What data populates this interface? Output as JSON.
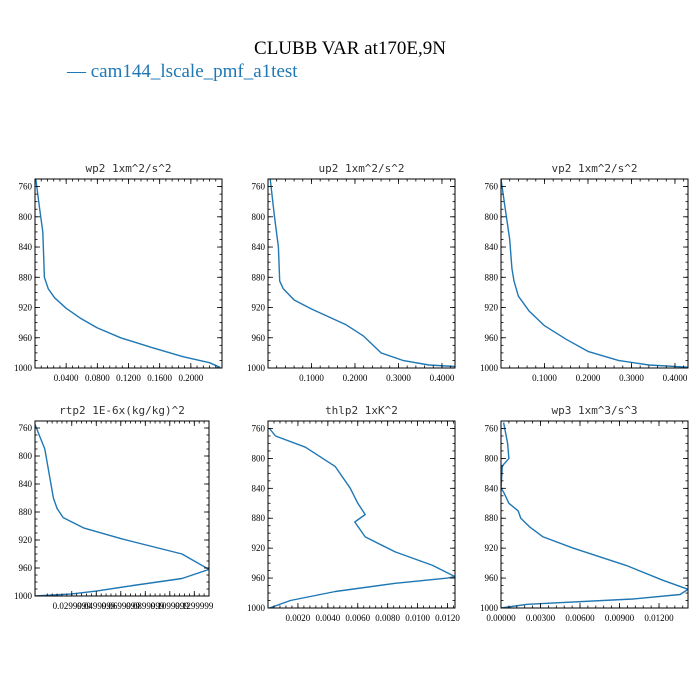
{
  "figure": {
    "title": "CLUBB VAR at170E,9N",
    "legend": [
      {
        "name": "cam144_lscale_pmf_a1test",
        "color": "#1f77b4",
        "label": "— cam144_lscale_pmf_a1test"
      }
    ]
  },
  "chart_data": [
    {
      "type": "line",
      "title": "wp2  1xm^2/s^2",
      "xlim": [
        0.0,
        0.24
      ],
      "ylim": [
        1000,
        750
      ],
      "xticks": [
        0.04,
        0.08,
        0.12,
        0.16,
        0.2
      ],
      "xtick_labels": [
        "0.0400",
        "0.0800",
        "0.1200",
        "0.1600",
        "0.2000"
      ],
      "yticks": [
        760,
        800,
        840,
        880,
        920,
        960,
        1000
      ],
      "ytick_labels": [
        "760",
        "800",
        "840",
        "880",
        "920",
        "960",
        "1000"
      ],
      "series": [
        {
          "color": "#1f77b4",
          "x": [
            0.001,
            0.006,
            0.01,
            0.012,
            0.017,
            0.025,
            0.04,
            0.058,
            0.08,
            0.11,
            0.15,
            0.19,
            0.224,
            0.237,
            0.232
          ],
          "y": [
            750,
            790,
            820,
            880,
            895,
            907,
            921,
            934,
            947,
            960,
            973,
            985,
            993,
            999,
            1000
          ]
        }
      ]
    },
    {
      "type": "line",
      "title": "up2  1xm^2/s^2",
      "xlim": [
        0.0,
        0.43
      ],
      "ylim": [
        1000,
        750
      ],
      "xticks": [
        0.1,
        0.2,
        0.3,
        0.4
      ],
      "xtick_labels": [
        "0.1000",
        "0.2000",
        "0.3000",
        "0.4000"
      ],
      "yticks": [
        760,
        800,
        840,
        880,
        920,
        960,
        1000
      ],
      "ytick_labels": [
        "760",
        "800",
        "840",
        "880",
        "920",
        "960",
        "1000"
      ],
      "series": [
        {
          "color": "#1f77b4",
          "x": [
            0.005,
            0.015,
            0.024,
            0.027,
            0.035,
            0.06,
            0.1,
            0.18,
            0.22,
            0.26,
            0.31,
            0.37,
            0.43
          ],
          "y": [
            750,
            800,
            840,
            885,
            895,
            910,
            922,
            943,
            958,
            980,
            990,
            996,
            998
          ]
        }
      ]
    },
    {
      "type": "line",
      "title": "vp2  1xm^2/s^2",
      "xlim": [
        0.0,
        0.43
      ],
      "ylim": [
        1000,
        750
      ],
      "xticks": [
        0.1,
        0.2,
        0.3,
        0.4
      ],
      "xtick_labels": [
        "0.1000",
        "0.2000",
        "0.3000",
        "0.4000"
      ],
      "yticks": [
        760,
        800,
        840,
        880,
        920,
        960,
        1000
      ],
      "ytick_labels": [
        "760",
        "800",
        "840",
        "880",
        "920",
        "960",
        "1000"
      ],
      "series": [
        {
          "color": "#1f77b4",
          "x": [
            0.0,
            0.01,
            0.02,
            0.025,
            0.03,
            0.04,
            0.065,
            0.1,
            0.15,
            0.2,
            0.27,
            0.34,
            0.43
          ],
          "y": [
            750,
            790,
            830,
            868,
            885,
            905,
            925,
            944,
            962,
            978,
            990,
            996,
            999
          ]
        }
      ]
    },
    {
      "type": "line",
      "title": "rtp2  1E-6x(kg/kg)^2",
      "xlim": [
        0.0,
        0.142
      ],
      "ylim": [
        1000,
        750
      ],
      "xticks": [
        0.03,
        0.05,
        0.07,
        0.09,
        0.11,
        0.13
      ],
      "xtick_labels": [
        "0.0299999",
        "0.0499999",
        "0.0699999",
        "0.0899999",
        "0.1099999",
        "0.1299999"
      ],
      "yticks": [
        760,
        800,
        840,
        880,
        920,
        960,
        1000
      ],
      "ytick_labels": [
        "760",
        "800",
        "840",
        "880",
        "920",
        "960",
        "1000"
      ],
      "series": [
        {
          "color": "#1f77b4",
          "x": [
            0.0,
            0.008,
            0.012,
            0.015,
            0.018,
            0.023,
            0.04,
            0.07,
            0.12,
            0.142,
            0.12,
            0.08,
            0.05,
            0.03,
            0.0
          ],
          "y": [
            755,
            790,
            830,
            860,
            875,
            888,
            903,
            918,
            940,
            962,
            975,
            985,
            993,
            997,
            1000
          ]
        }
      ]
    },
    {
      "type": "line",
      "title": "thlp2  1xK^2",
      "xlim": [
        0.0,
        0.0125
      ],
      "ylim": [
        1000,
        750
      ],
      "xticks": [
        0.002,
        0.004,
        0.006,
        0.008,
        0.01,
        0.012
      ],
      "xtick_labels": [
        "0.0020",
        "0.0040",
        "0.0060",
        "0.0080",
        "0.0100",
        "0.0120"
      ],
      "yticks": [
        760,
        800,
        840,
        880,
        920,
        960,
        1000
      ],
      "ytick_labels": [
        "760",
        "800",
        "840",
        "880",
        "920",
        "960",
        "1000"
      ],
      "series": [
        {
          "color": "#1f77b4",
          "x": [
            0.0001,
            0.0005,
            0.0025,
            0.0045,
            0.0055,
            0.006,
            0.0065,
            0.0058,
            0.0065,
            0.0085,
            0.011,
            0.0125,
            0.012,
            0.0085,
            0.0045,
            0.0015,
            0.0001
          ],
          "y": [
            760,
            770,
            785,
            811,
            840,
            860,
            875,
            885,
            905,
            925,
            943,
            958,
            960,
            967,
            978,
            990,
            1000
          ]
        }
      ]
    },
    {
      "type": "line",
      "title": "wp3  1xm^3/s^3",
      "xlim": [
        0.0,
        0.0142
      ],
      "ylim": [
        1000,
        750
      ],
      "xticks": [
        0.0,
        0.003,
        0.006,
        0.009,
        0.012
      ],
      "xtick_labels": [
        "0.00000",
        "0.00300",
        "0.00600",
        "0.00900",
        "0.01200"
      ],
      "yticks": [
        760,
        800,
        840,
        880,
        920,
        960,
        1000
      ],
      "ytick_labels": [
        "760",
        "800",
        "840",
        "880",
        "920",
        "960",
        "1000"
      ],
      "series": [
        {
          "color": "#1f77b4",
          "x": [
            0.0002,
            0.0005,
            0.0006,
            0.0001,
            0.0,
            0.0002,
            0.0006,
            0.0013,
            0.0015,
            0.0022,
            0.0032,
            0.0055,
            0.0095,
            0.0123,
            0.0142,
            0.0136,
            0.01,
            0.002,
            0.0
          ],
          "y": [
            752,
            780,
            800,
            810,
            840,
            845,
            860,
            870,
            880,
            892,
            905,
            920,
            943,
            963,
            975,
            982,
            988,
            995,
            1000
          ]
        }
      ]
    }
  ]
}
